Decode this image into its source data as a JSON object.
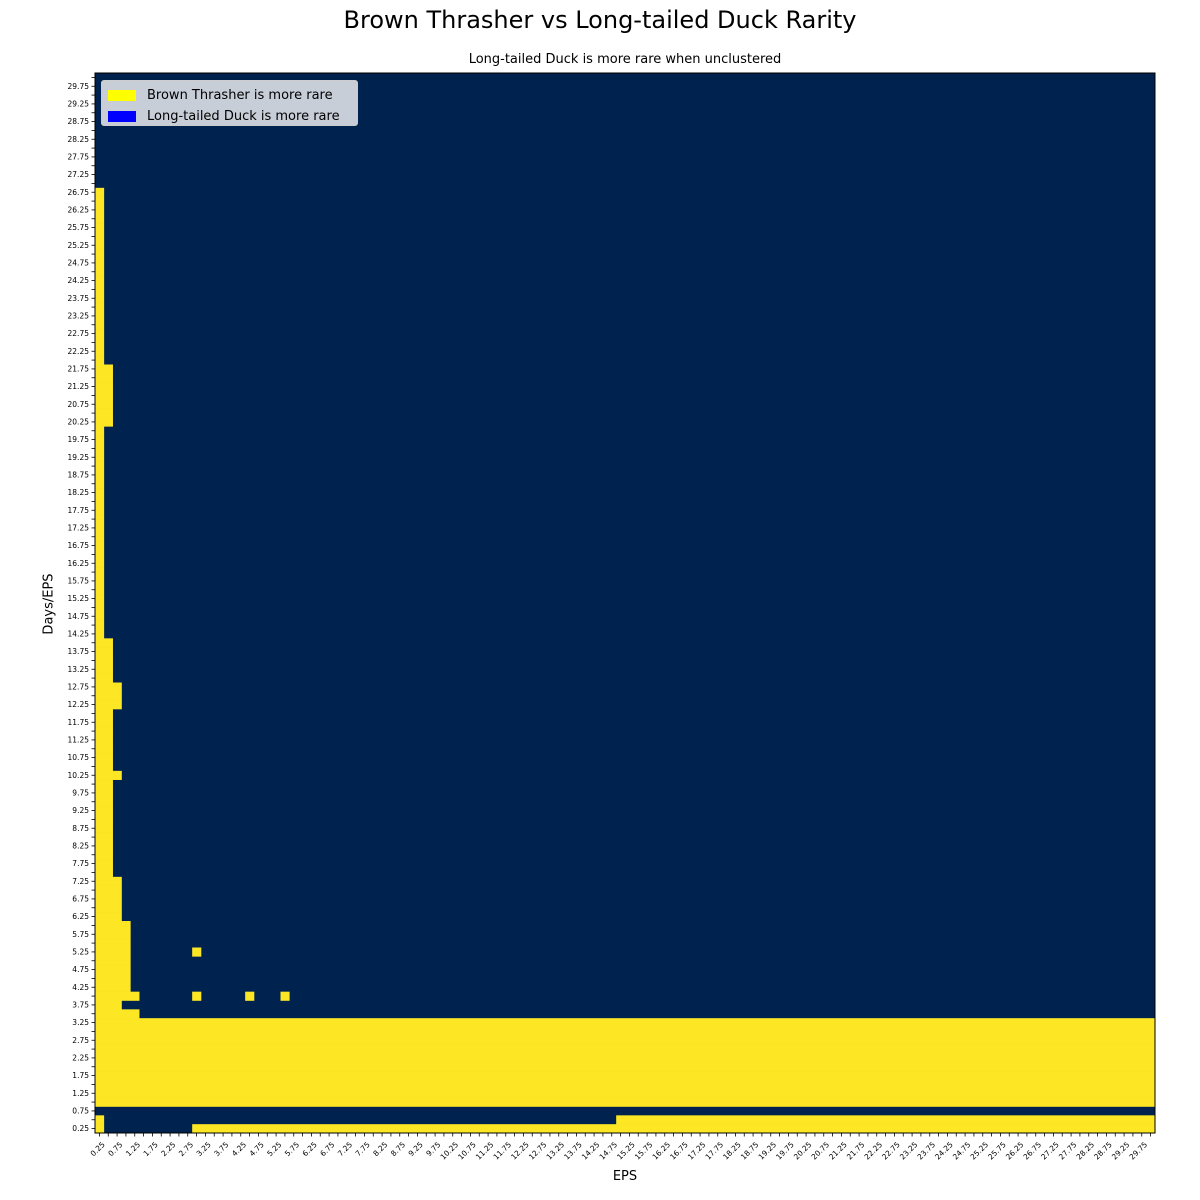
{
  "chart_data": {
    "type": "heatmap",
    "title": "Brown Thrasher vs Long-tailed Duck Rarity",
    "subtitle": "Long-tailed Duck is more rare when unclustered",
    "xlabel": "EPS",
    "ylabel": "Days/EPS",
    "x": [
      0.25,
      0.5,
      0.75,
      1.0,
      1.25,
      1.5,
      1.75,
      2.0,
      2.25,
      2.5,
      2.75,
      3.0,
      3.25,
      3.5,
      3.75,
      4.0,
      4.25,
      4.5,
      4.75,
      5.0,
      5.25,
      5.5,
      5.75,
      6.0,
      6.25,
      6.5,
      6.75,
      7.0,
      7.25,
      7.5,
      7.75,
      8.0,
      8.25,
      8.5,
      8.75,
      9.0,
      9.25,
      9.5,
      9.75,
      10.0,
      10.25,
      10.5,
      10.75,
      11.0,
      11.25,
      11.5,
      11.75,
      12.0,
      12.25,
      12.5,
      12.75,
      13.0,
      13.25,
      13.5,
      13.75,
      14.0,
      14.25,
      14.5,
      14.75,
      15.0,
      15.25,
      15.5,
      15.75,
      16.0,
      16.25,
      16.5,
      16.75,
      17.0,
      17.25,
      17.5,
      17.75,
      18.0,
      18.25,
      18.5,
      18.75,
      19.0,
      19.25,
      19.5,
      19.75,
      20.0,
      20.25,
      20.5,
      20.75,
      21.0,
      21.25,
      21.5,
      21.75,
      22.0,
      22.25,
      22.5,
      22.75,
      23.0,
      23.25,
      23.5,
      23.75,
      24.0,
      24.25,
      24.5,
      24.75,
      25.0,
      25.25,
      25.5,
      25.75,
      26.0,
      26.25,
      26.5,
      26.75,
      27.0,
      27.25,
      27.5,
      27.75,
      28.0,
      28.25,
      28.5,
      28.75,
      29.0,
      29.25,
      29.5,
      29.75,
      30.0
    ],
    "xticklabels": [
      "0.25",
      "0.75",
      "1.25",
      "1.75",
      "2.25",
      "2.75",
      "3.25",
      "3.75",
      "4.25",
      "4.75",
      "5.25",
      "5.75",
      "6.25",
      "6.75",
      "7.25",
      "7.75",
      "8.25",
      "8.75",
      "9.25",
      "9.75",
      "10.25",
      "10.75",
      "11.25",
      "11.75",
      "12.25",
      "12.75",
      "13.25",
      "13.75",
      "14.25",
      "14.75",
      "15.25",
      "15.75",
      "16.25",
      "16.75",
      "17.25",
      "17.75",
      "18.25",
      "18.75",
      "19.25",
      "19.75",
      "20.25",
      "20.75",
      "21.25",
      "21.75",
      "22.25",
      "22.75",
      "23.25",
      "23.75",
      "24.25",
      "24.75",
      "25.25",
      "25.75",
      "26.25",
      "26.75",
      "27.25",
      "27.75",
      "28.25",
      "28.75",
      "29.25",
      "29.75"
    ],
    "yticklabels": [
      "0.25",
      "0.75",
      "1.25",
      "1.75",
      "2.25",
      "2.75",
      "3.25",
      "3.75",
      "4.25",
      "4.75",
      "5.25",
      "5.75",
      "6.25",
      "6.75",
      "7.25",
      "7.75",
      "8.25",
      "8.75",
      "9.25",
      "9.75",
      "10.25",
      "10.75",
      "11.25",
      "11.75",
      "12.25",
      "12.75",
      "13.25",
      "13.75",
      "14.25",
      "14.75",
      "15.25",
      "15.75",
      "16.25",
      "16.75",
      "17.25",
      "17.75",
      "18.25",
      "18.75",
      "19.25",
      "19.75",
      "20.25",
      "20.75",
      "21.25",
      "21.75",
      "22.25",
      "22.75",
      "23.25",
      "23.75",
      "24.25",
      "24.75",
      "25.25",
      "25.75",
      "26.25",
      "26.75",
      "27.25",
      "27.75",
      "28.25",
      "28.75",
      "29.25",
      "29.75"
    ],
    "y_range": [
      0.25,
      30.0
    ],
    "x_range": [
      0.25,
      30.0
    ],
    "colors": {
      "1": "#fde725",
      "0": "#00224e"
    },
    "value_meaning": {
      "1": "Brown Thrasher is more rare",
      "0": "Long-tailed Duck is more rare"
    },
    "default_value": 0,
    "yellow_left_columns_by_row": [
      {
        "y_from": 0.25,
        "y_to": 0.25,
        "n_cols": 0
      },
      {
        "y_from": 0.5,
        "y_to": 0.75,
        "n_cols": 0
      },
      {
        "y_from": 1.0,
        "y_to": 3.25,
        "n_cols": 120
      },
      {
        "y_from": 3.5,
        "y_to": 3.5,
        "n_cols": 5
      },
      {
        "y_from": 3.75,
        "y_to": 3.75,
        "n_cols": 4
      },
      {
        "y_from": 4.0,
        "y_to": 6.0,
        "n_cols": 4
      },
      {
        "y_from": 6.25,
        "y_to": 7.25,
        "n_cols": 3
      },
      {
        "y_from": 7.5,
        "y_to": 10.0,
        "n_cols": 2
      },
      {
        "y_from": 10.25,
        "y_to": 10.25,
        "n_cols": 3
      },
      {
        "y_from": 10.5,
        "y_to": 12.0,
        "n_cols": 2
      },
      {
        "y_from": 12.25,
        "y_to": 12.75,
        "n_cols": 3
      },
      {
        "y_from": 13.0,
        "y_to": 14.0,
        "n_cols": 2
      },
      {
        "y_from": 14.25,
        "y_to": 20.0,
        "n_cols": 1
      },
      {
        "y_from": 20.25,
        "y_to": 21.75,
        "n_cols": 2
      },
      {
        "y_from": 22.0,
        "y_to": 26.75,
        "n_cols": 1
      },
      {
        "y_from": 27.0,
        "y_to": 30.0,
        "n_cols": 0
      }
    ],
    "extra_yellow_ranges": [
      {
        "y": 0.25,
        "x_from": 0.25,
        "x_to": 0.25
      },
      {
        "y": 0.5,
        "x_from": 0.25,
        "x_to": 0.25
      },
      {
        "y": 0.25,
        "x_from": 3.0,
        "x_to": 30.0
      },
      {
        "y": 0.5,
        "x_from": 15.0,
        "x_to": 30.0
      }
    ],
    "extra_yellow_cells": [
      {
        "x": 1.25,
        "y": 4.0
      },
      {
        "x": 3.0,
        "y": 4.0
      },
      {
        "x": 4.5,
        "y": 4.0
      },
      {
        "x": 5.5,
        "y": 4.0
      },
      {
        "x": 3.0,
        "y": 5.25
      }
    ],
    "extra_blue_cells": [
      {
        "x": 1.0,
        "y": 3.75
      }
    ],
    "legend": {
      "position": "top-left",
      "entries": [
        {
          "label": "Brown Thrasher is more rare",
          "color": "#ffff00"
        },
        {
          "label": "Long-tailed Duck is more rare",
          "color": "#0000ff"
        }
      ]
    }
  }
}
